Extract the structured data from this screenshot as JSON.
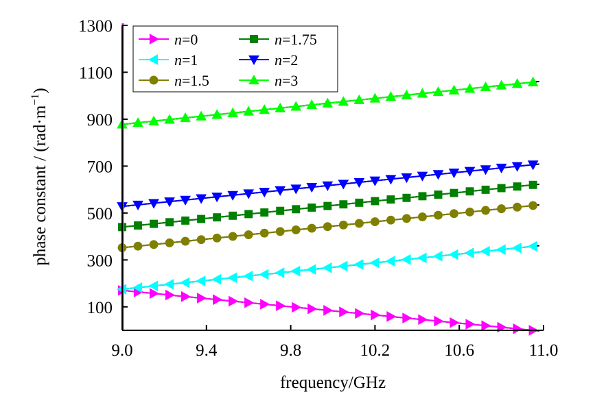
{
  "chart_data": {
    "type": "line",
    "xlabel": "frequency/GHz",
    "ylabel": "phase constant / (rad·m",
    "ylabel_superscript": "−1",
    "ylabel_close": ")",
    "xlim": [
      9.0,
      11.0
    ],
    "ylim": [
      0,
      1300
    ],
    "xticks": [
      9.0,
      9.4,
      9.8,
      10.2,
      10.6,
      11.0
    ],
    "xtick_labels": [
      "9.0",
      "9.4",
      "9.8",
      "10.2",
      "10.6",
      "11.0"
    ],
    "yticks": [
      100,
      300,
      500,
      700,
      900,
      1100,
      1300
    ],
    "ytick_labels": [
      "100",
      "300",
      "500",
      "700",
      "900",
      "1100",
      "1300"
    ],
    "grid": false,
    "legend_position": "top-left",
    "series": [
      {
        "name": "n=0",
        "var": "n",
        "value": "=0",
        "color": "#ff00ff",
        "marker": "triangle-right",
        "y_start": 170,
        "y_end": 0
      },
      {
        "name": "n=1",
        "var": "n",
        "value": "=1",
        "color": "#00ffff",
        "marker": "triangle-left",
        "y_start": 175,
        "y_end": 358
      },
      {
        "name": "n=1.5",
        "var": "n",
        "value": "=1.5",
        "color": "#808000",
        "marker": "circle",
        "y_start": 352,
        "y_end": 532
      },
      {
        "name": "n=1.75",
        "var": "n",
        "value": "=1.75",
        "color": "#008000",
        "marker": "square",
        "y_start": 440,
        "y_end": 620
      },
      {
        "name": "n=2",
        "var": "n",
        "value": "=2",
        "color": "#0000ff",
        "marker": "triangle-down",
        "y_start": 528,
        "y_end": 706
      },
      {
        "name": "n=3",
        "var": "n",
        "value": "=3",
        "color": "#00ff00",
        "marker": "triangle-up",
        "y_start": 878,
        "y_end": 1058
      }
    ],
    "x_start": 9.0,
    "x_end": 10.95,
    "points_per_series": 27
  }
}
